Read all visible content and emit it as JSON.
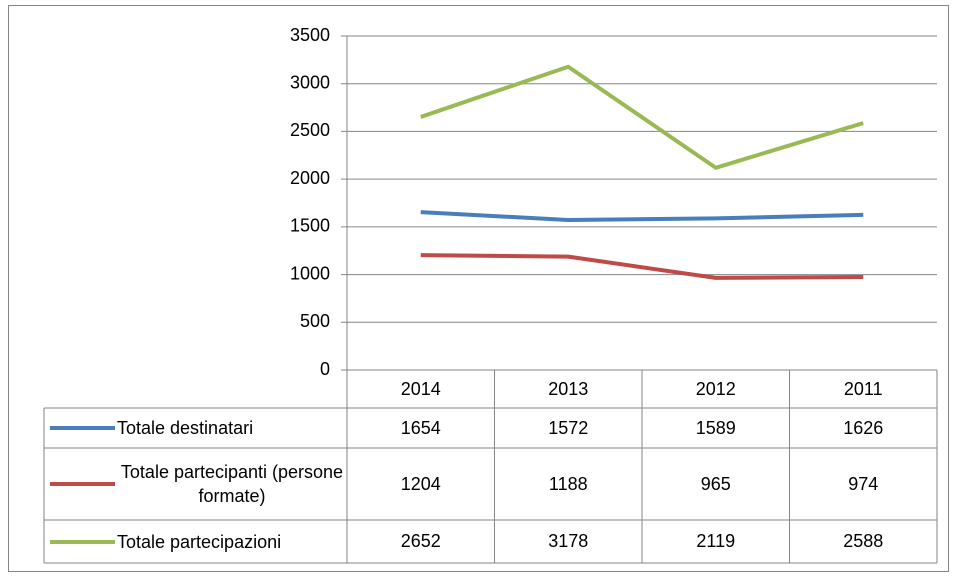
{
  "chart_data": {
    "type": "line",
    "categories": [
      "2014",
      "2013",
      "2012",
      "2011"
    ],
    "series": [
      {
        "name": "Totale destinatari",
        "color": "#4a7ebb",
        "values": [
          1654,
          1572,
          1589,
          1626
        ]
      },
      {
        "name": "Totale partecipanti (persone formate)",
        "color": "#be4b48",
        "values": [
          1204,
          1188,
          965,
          974
        ]
      },
      {
        "name": "Totale partecipazioni",
        "color": "#98b954",
        "values": [
          2652,
          3178,
          2119,
          2588
        ]
      }
    ],
    "ylim": [
      0,
      3500
    ],
    "yticks": [
      0,
      500,
      1000,
      1500,
      2000,
      2500,
      3000,
      3500
    ],
    "grid": true
  }
}
